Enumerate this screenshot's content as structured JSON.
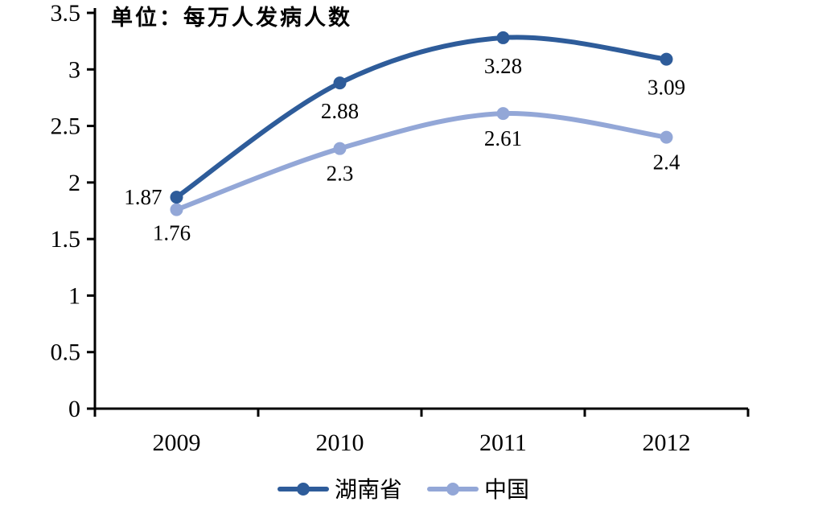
{
  "chart_data": {
    "type": "line",
    "title": "单位：每万人发病人数",
    "categories": [
      "2009",
      "2010",
      "2011",
      "2012"
    ],
    "series": [
      {
        "name": "湖南省",
        "color": "#2e5c9a",
        "values": [
          1.87,
          2.88,
          3.28,
          3.09
        ],
        "point_labels": [
          "1.87",
          "2.88",
          "3.28",
          "3.09"
        ]
      },
      {
        "name": "中国",
        "color": "#93a7d7",
        "values": [
          1.76,
          2.3,
          2.61,
          2.4
        ],
        "point_labels": [
          "1.76",
          "2.3",
          "2.61",
          "2.4"
        ]
      }
    ],
    "ylim": [
      0,
      3.5
    ],
    "yticks": [
      "0",
      "0.5",
      "1",
      "1.5",
      "2",
      "2.5",
      "3",
      "3.5"
    ],
    "xlabel": "",
    "ylabel": "",
    "grid": false,
    "smooth": true,
    "legend_position": "bottom",
    "axis_color": "#000000",
    "background_color": "#ffffff"
  }
}
